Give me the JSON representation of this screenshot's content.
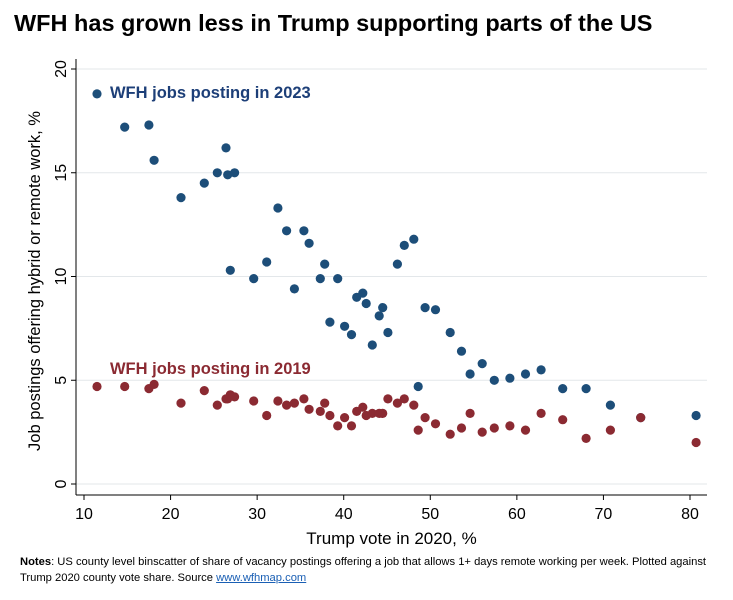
{
  "chart_data": {
    "type": "scatter",
    "title": "WFH has grown less in Trump supporting parts of the US",
    "xlabel": "Trump vote in 2020, %",
    "ylabel": "Job postings offering hybrid or remote work, %",
    "xlim": [
      10,
      82
    ],
    "ylim": [
      0,
      20
    ],
    "x_ticks": [
      10,
      20,
      30,
      40,
      50,
      60,
      70,
      80
    ],
    "y_ticks": [
      0,
      5,
      10,
      15,
      20
    ],
    "grid": "horizontal",
    "series": [
      {
        "name": "WFH jobs posting in 2023",
        "color": "#1d4e79",
        "points": [
          [
            11.5,
            18.8
          ],
          [
            14.7,
            17.2
          ],
          [
            17.5,
            17.3
          ],
          [
            18.1,
            15.6
          ],
          [
            21.2,
            13.8
          ],
          [
            23.9,
            14.5
          ],
          [
            25.4,
            15.0
          ],
          [
            26.4,
            16.2
          ],
          [
            26.6,
            14.9
          ],
          [
            26.9,
            10.3
          ],
          [
            27.4,
            15.0
          ],
          [
            29.6,
            9.9
          ],
          [
            31.1,
            10.7
          ],
          [
            32.4,
            13.3
          ],
          [
            33.4,
            12.2
          ],
          [
            34.3,
            9.4
          ],
          [
            35.4,
            12.2
          ],
          [
            36.0,
            11.6
          ],
          [
            37.3,
            9.9
          ],
          [
            37.8,
            10.6
          ],
          [
            38.4,
            7.8
          ],
          [
            39.3,
            9.9
          ],
          [
            40.1,
            7.6
          ],
          [
            40.9,
            7.2
          ],
          [
            41.5,
            9.0
          ],
          [
            42.2,
            9.2
          ],
          [
            42.6,
            8.7
          ],
          [
            43.3,
            6.7
          ],
          [
            44.1,
            8.1
          ],
          [
            44.5,
            8.5
          ],
          [
            45.1,
            7.3
          ],
          [
            46.2,
            10.6
          ],
          [
            47.0,
            11.5
          ],
          [
            48.1,
            11.8
          ],
          [
            48.6,
            4.7
          ],
          [
            49.4,
            8.5
          ],
          [
            50.6,
            8.4
          ],
          [
            52.3,
            7.3
          ],
          [
            53.6,
            6.4
          ],
          [
            54.6,
            5.3
          ],
          [
            56.0,
            5.8
          ],
          [
            57.4,
            5.0
          ],
          [
            59.2,
            5.1
          ],
          [
            61.0,
            5.3
          ],
          [
            62.8,
            5.5
          ],
          [
            65.3,
            4.6
          ],
          [
            68.0,
            4.6
          ],
          [
            70.8,
            3.8
          ],
          [
            74.3,
            3.2
          ],
          [
            80.7,
            3.3
          ]
        ]
      },
      {
        "name": "WFH jobs posting in 2019",
        "color": "#8b2a32",
        "points": [
          [
            11.5,
            4.7
          ],
          [
            14.7,
            4.7
          ],
          [
            17.5,
            4.6
          ],
          [
            18.1,
            4.8
          ],
          [
            21.2,
            3.9
          ],
          [
            23.9,
            4.5
          ],
          [
            25.4,
            3.8
          ],
          [
            26.4,
            4.1
          ],
          [
            26.6,
            4.1
          ],
          [
            26.9,
            4.3
          ],
          [
            27.4,
            4.2
          ],
          [
            29.6,
            4.0
          ],
          [
            31.1,
            3.3
          ],
          [
            32.4,
            4.0
          ],
          [
            33.4,
            3.8
          ],
          [
            34.3,
            3.9
          ],
          [
            35.4,
            4.1
          ],
          [
            36.0,
            3.6
          ],
          [
            37.3,
            3.5
          ],
          [
            37.8,
            3.9
          ],
          [
            38.4,
            3.3
          ],
          [
            39.3,
            2.8
          ],
          [
            40.1,
            3.2
          ],
          [
            40.9,
            2.8
          ],
          [
            41.5,
            3.5
          ],
          [
            42.2,
            3.7
          ],
          [
            42.6,
            3.3
          ],
          [
            43.3,
            3.4
          ],
          [
            44.1,
            3.4
          ],
          [
            44.5,
            3.4
          ],
          [
            45.1,
            4.1
          ],
          [
            46.2,
            3.9
          ],
          [
            47.0,
            4.1
          ],
          [
            48.1,
            3.8
          ],
          [
            48.6,
            2.6
          ],
          [
            49.4,
            3.2
          ],
          [
            50.6,
            2.9
          ],
          [
            52.3,
            2.4
          ],
          [
            53.6,
            2.7
          ],
          [
            54.6,
            3.4
          ],
          [
            56.0,
            2.5
          ],
          [
            57.4,
            2.7
          ],
          [
            59.2,
            2.8
          ],
          [
            61.0,
            2.6
          ],
          [
            62.8,
            3.4
          ],
          [
            65.3,
            3.1
          ],
          [
            68.0,
            2.2
          ],
          [
            70.8,
            2.6
          ],
          [
            74.3,
            3.2
          ],
          [
            80.7,
            2.0
          ]
        ]
      }
    ],
    "annotations": [
      {
        "text": "WFH jobs posting in 2023",
        "x": 13.0,
        "y": 18.9,
        "color": "#1d3f78"
      },
      {
        "text": "WFH jobs posting in 2019",
        "x": 13.0,
        "y": 5.6,
        "color": "#8b2a32"
      }
    ]
  },
  "notes": {
    "label": "Notes",
    "text": ": US county level binscatter of share of vacancy postings offering a job that allows 1+ days remote working per week. Plotted against Trump 2020 county vote share. Source ",
    "link_text": "www.wfhmap.com"
  }
}
